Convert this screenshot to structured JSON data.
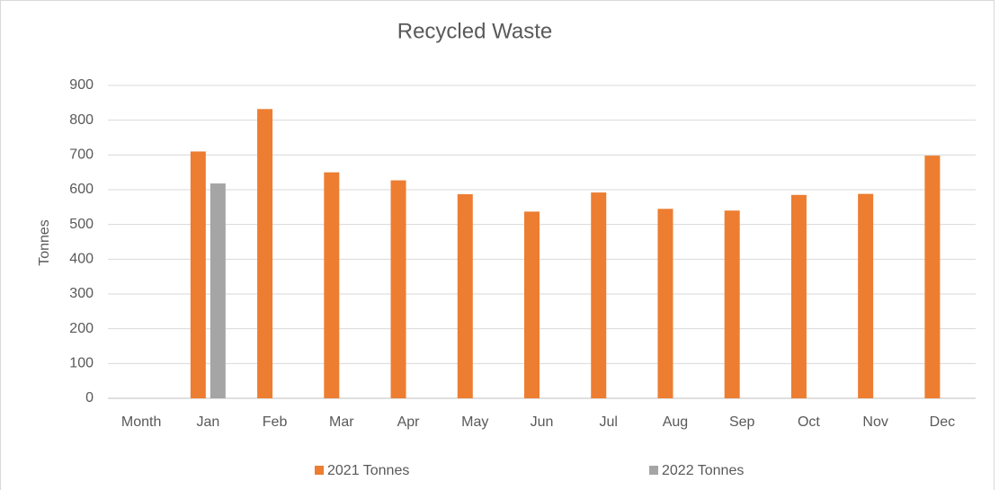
{
  "chart_data": {
    "type": "bar",
    "title": "Recycled Waste",
    "ylabel": "Tonnes",
    "categories": [
      "Month",
      "Jan",
      "Feb",
      "Mar",
      "Apr",
      "May",
      "Jun",
      "Jul",
      "Aug",
      "Sep",
      "Oct",
      "Nov",
      "Dec"
    ],
    "series": [
      {
        "name": "2021 Tonnes",
        "color": "#ed7d31",
        "values": [
          null,
          710,
          832,
          650,
          627,
          587,
          537,
          592,
          545,
          540,
          585,
          588,
          698
        ]
      },
      {
        "name": "2022 Tonnes",
        "color": "#a5a5a5",
        "values": [
          null,
          618,
          null,
          null,
          null,
          null,
          null,
          null,
          null,
          null,
          null,
          null,
          null
        ]
      }
    ],
    "ylim": [
      0,
      900
    ],
    "yticks": [
      0,
      100,
      200,
      300,
      400,
      500,
      600,
      700,
      800,
      900
    ],
    "grid": true,
    "legend": "bottom"
  }
}
